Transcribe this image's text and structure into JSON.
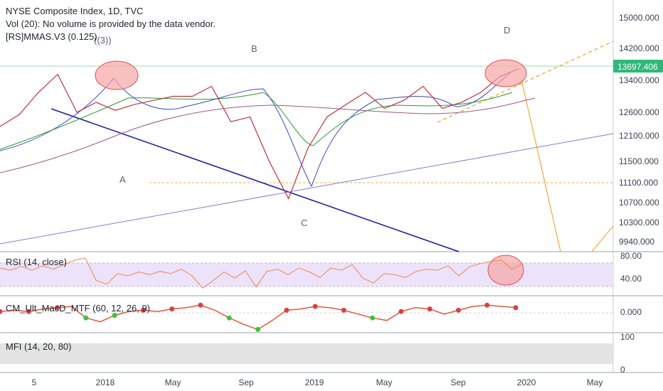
{
  "header": {
    "title": "NYSE Composite Index, 1D, TVC",
    "volume_note": "Vol (20): No volume is provided by the data vendor.",
    "indicator": "[RS]MMAS.V3 (0.125)"
  },
  "annotations": {
    "wave_3": "((3))",
    "wave_a": "A",
    "wave_b": "B",
    "wave_c": "C",
    "wave_d": "D"
  },
  "panes": {
    "rsi_label": "RSI (14, close)",
    "macd_label": "CM_Ult_MacD_MTF (60, 12, 26, 9)",
    "mfi_label": "MFI (14, 20, 80)"
  },
  "price_badge": "13697.406",
  "colors": {
    "price_badge": "#2fb87a",
    "trend_blue": "#1f1fa8",
    "rsi": "#f0864e",
    "rsi_band": "#ece3fb",
    "mfi_band": "#e3e3e3",
    "ellipse_fill": "#f6a5a5",
    "ellipse_stroke": "#e34d4d",
    "projection": "#f2a93b"
  },
  "chart_data": {
    "type": "line",
    "symbol": "NYSE Composite Index",
    "interval": "1D",
    "source": "TVC",
    "x_ticks": [
      "5",
      "2018",
      "May",
      "Sep",
      "2019",
      "May",
      "Sep",
      "2020",
      "May"
    ],
    "y_ticks": [
      "15000.000",
      "14200.000",
      "13400.000",
      "12600.000",
      "12100.000",
      "11500.000",
      "11100.000",
      "10700.000",
      "10300.000",
      "9940.000"
    ],
    "ylim": [
      9800,
      15200
    ],
    "last_value": 13697.406,
    "x": [
      "2017-11",
      "2017-12",
      "2018-01",
      "2018-01-26",
      "2018-02",
      "2018-03",
      "2018-04",
      "2018-05",
      "2018-06",
      "2018-07",
      "2018-08",
      "2018-09",
      "2018-10",
      "2018-11",
      "2018-12",
      "2018-12-24",
      "2019-01",
      "2019-02",
      "2019-03",
      "2019-04",
      "2019-05",
      "2019-06",
      "2019-07",
      "2019-08",
      "2019-09",
      "2019-10",
      "2019-11",
      "2019-12"
    ],
    "series": [
      {
        "values": [
          12300,
          12550,
          13100,
          13550,
          12600,
          12850,
          12650,
          12800,
          12900,
          13000,
          13000,
          13250,
          12400,
          12500,
          11500,
          10780,
          11800,
          12500,
          12800,
          13100,
          12700,
          12900,
          13250,
          12700,
          12850,
          13100,
          13500,
          13697
        ]
      }
    ],
    "rsi": {
      "y_ticks": [
        "80.00",
        "40.00"
      ],
      "ylim": [
        20,
        90
      ],
      "bands": [
        30,
        70
      ],
      "values": [
        62,
        58,
        65,
        58,
        66,
        60,
        68,
        76,
        80,
        40,
        33,
        52,
        48,
        55,
        50,
        56,
        52,
        60,
        48,
        26,
        40,
        55,
        44,
        57,
        28,
        56,
        60,
        50,
        62,
        55,
        45,
        62,
        58,
        68,
        44,
        35,
        52,
        50,
        45,
        56,
        60,
        58,
        66,
        48,
        64,
        70,
        74,
        76,
        60,
        70
      ]
    },
    "macd": {
      "y_ticks": [
        "0.000"
      ],
      "values": [
        0.1,
        0.2,
        0.1,
        0.3,
        0.4,
        0.5,
        -0.4,
        -0.7,
        -0.2,
        0.1,
        0.2,
        0.1,
        0.3,
        0.4,
        0.6,
        0.2,
        -0.4,
        -0.9,
        -1.3,
        -0.6,
        0.2,
        0.3,
        0.5,
        0.4,
        0.2,
        -0.1,
        -0.4,
        -0.6,
        0.1,
        0.4,
        0.3,
        -0.1,
        0.2,
        0.5,
        0.6,
        0.5,
        0.4
      ]
    },
    "mfi": {
      "y_ticks": [
        "100",
        "0"
      ],
      "bands": [
        20,
        80
      ]
    }
  }
}
